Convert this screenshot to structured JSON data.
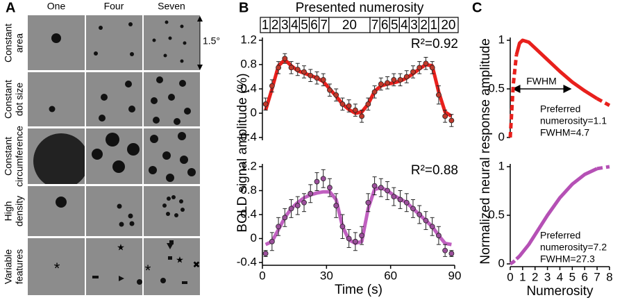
{
  "panel_a": {
    "label": "A",
    "columns": [
      "One",
      "Four",
      "Seven"
    ],
    "rows": [
      [
        "Constant",
        "area"
      ],
      [
        "Constant",
        "dot size"
      ],
      [
        "Constant",
        "circumference"
      ],
      [
        "High",
        "density"
      ],
      [
        "Variable",
        "features"
      ]
    ],
    "scale": "1.5°"
  },
  "panel_b": {
    "label": "B",
    "numerosity_title": "Presented numerosity",
    "numerosity_sequence": [
      1,
      2,
      3,
      4,
      5,
      6,
      7,
      20,
      7,
      6,
      5,
      4,
      3,
      2,
      1,
      20
    ],
    "ylabel": "BOLD signal amplitude (%)"
  },
  "panel_c": {
    "label": "C",
    "ylabel": "Normalized neural response amplitude",
    "fwhm_label": "FWHM"
  },
  "chart_data": [
    {
      "type": "line",
      "annotation": "R²=0.92",
      "xlim": [
        0,
        90
      ],
      "ylim": [
        -0.4,
        1.2
      ],
      "yticks": [
        -0.4,
        0,
        0.4,
        0.8,
        1.2
      ],
      "x": [
        1.5,
        4.5,
        7.5,
        10.5,
        13.5,
        16.5,
        19.5,
        22.5,
        25.5,
        28.5,
        31.5,
        34.5,
        37.5,
        40.5,
        43.5,
        46.5,
        49.5,
        52.5,
        55.5,
        58.5,
        61.5,
        64.5,
        67.5,
        70.5,
        73.5,
        76.5,
        79.5,
        82.5,
        85.5,
        88.5
      ],
      "series": [
        {
          "color": "#c0392b",
          "values": [
            0.15,
            0.45,
            0.75,
            0.9,
            0.75,
            0.72,
            0.68,
            0.62,
            0.58,
            0.55,
            0.38,
            0.3,
            0.15,
            0.12,
            0.05,
            -0.05,
            0.15,
            0.35,
            0.48,
            0.5,
            0.55,
            0.55,
            0.6,
            0.68,
            0.75,
            0.82,
            0.75,
            0.3,
            -0.05,
            -0.12
          ],
          "errors": [
            0.1,
            0.1,
            0.1,
            0.08,
            0.1,
            0.1,
            0.1,
            0.1,
            0.1,
            0.1,
            0.1,
            0.1,
            0.1,
            0.1,
            0.1,
            0.1,
            0.1,
            0.1,
            0.1,
            0.1,
            0.1,
            0.1,
            0.1,
            0.1,
            0.1,
            0.1,
            0.1,
            0.15,
            0.1,
            0.1
          ]
        },
        {
          "color": "#e8201c",
          "values": [
            0.05,
            0.4,
            0.78,
            0.88,
            0.78,
            0.7,
            0.66,
            0.62,
            0.58,
            0.52,
            0.4,
            0.28,
            0.15,
            0.06,
            0.0,
            0.02,
            0.15,
            0.36,
            0.45,
            0.48,
            0.5,
            0.53,
            0.58,
            0.65,
            0.73,
            0.8,
            0.78,
            0.35,
            0.02,
            -0.05
          ]
        }
      ]
    },
    {
      "type": "line",
      "annotation": "R²=0.88",
      "xlabel": "Time (s)",
      "xlim": [
        0,
        90
      ],
      "xticks": [
        0,
        30,
        60,
        90
      ],
      "ylim": [
        -0.4,
        1.2
      ],
      "yticks": [
        -0.4,
        0,
        0.4,
        0.8,
        1.2
      ],
      "x": [
        1.5,
        4.5,
        7.5,
        10.5,
        13.5,
        16.5,
        19.5,
        22.5,
        25.5,
        28.5,
        31.5,
        34.5,
        37.5,
        40.5,
        43.5,
        46.5,
        49.5,
        52.5,
        55.5,
        58.5,
        61.5,
        64.5,
        67.5,
        70.5,
        73.5,
        76.5,
        79.5,
        82.5,
        85.5,
        88.5
      ],
      "series": [
        {
          "color": "#9b4f9b",
          "values": [
            -0.25,
            -0.05,
            0.2,
            0.35,
            0.5,
            0.55,
            0.6,
            0.75,
            0.95,
            1.0,
            0.85,
            0.55,
            0.2,
            0.0,
            -0.05,
            0.05,
            0.6,
            0.88,
            0.85,
            0.8,
            0.7,
            0.65,
            0.6,
            0.5,
            0.4,
            0.3,
            0.2,
            0.05,
            -0.2,
            -0.25
          ],
          "errors": [
            0.05,
            0.15,
            0.15,
            0.15,
            0.15,
            0.15,
            0.15,
            0.15,
            0.15,
            0.15,
            0.15,
            0.2,
            0.2,
            0.15,
            0.15,
            0.15,
            0.15,
            0.15,
            0.15,
            0.15,
            0.15,
            0.15,
            0.15,
            0.15,
            0.15,
            0.15,
            0.15,
            0.15,
            0.1,
            0.05
          ]
        },
        {
          "color": "#c060c0",
          "values": [
            -0.1,
            -0.05,
            0.15,
            0.35,
            0.5,
            0.6,
            0.68,
            0.73,
            0.76,
            0.78,
            0.78,
            0.65,
            0.2,
            -0.02,
            -0.08,
            -0.05,
            0.5,
            0.82,
            0.85,
            0.8,
            0.72,
            0.66,
            0.6,
            0.5,
            0.4,
            0.3,
            0.2,
            0.05,
            -0.08,
            -0.1
          ]
        }
      ]
    },
    {
      "type": "line",
      "xlim": [
        0,
        8
      ],
      "ylim": [
        0,
        1
      ],
      "yticks": [
        0,
        0.5,
        1
      ],
      "solid_range": [
        0.5,
        7
      ],
      "text": [
        "Preferred",
        "numerosity=1.1",
        "FWHM=4.7"
      ],
      "x": [
        0,
        0.25,
        0.5,
        0.75,
        1,
        1.5,
        2,
        3,
        4,
        5,
        6,
        7,
        8
      ],
      "series": [
        {
          "color": "#e8201c",
          "values": [
            0,
            0.55,
            0.85,
            0.97,
            1.0,
            0.98,
            0.92,
            0.8,
            0.68,
            0.57,
            0.48,
            0.4,
            0.33
          ]
        }
      ]
    },
    {
      "type": "line",
      "xlabel": "Numerosity",
      "xlim": [
        0,
        8
      ],
      "xticks": [
        0,
        1,
        2,
        3,
        4,
        5,
        6,
        7,
        8
      ],
      "ylim": [
        0,
        1
      ],
      "yticks": [
        0,
        0.5,
        1
      ],
      "solid_range": [
        0.5,
        7
      ],
      "text": [
        "Preferred",
        "numerosity=7.2",
        "FWHM=27.3"
      ],
      "x": [
        0,
        0.25,
        0.5,
        0.75,
        1,
        1.5,
        2,
        3,
        4,
        5,
        6,
        7,
        8
      ],
      "series": [
        {
          "color": "#b550b5",
          "values": [
            0,
            0.02,
            0.05,
            0.08,
            0.12,
            0.2,
            0.3,
            0.5,
            0.68,
            0.82,
            0.92,
            0.98,
            1.0
          ]
        }
      ]
    }
  ]
}
